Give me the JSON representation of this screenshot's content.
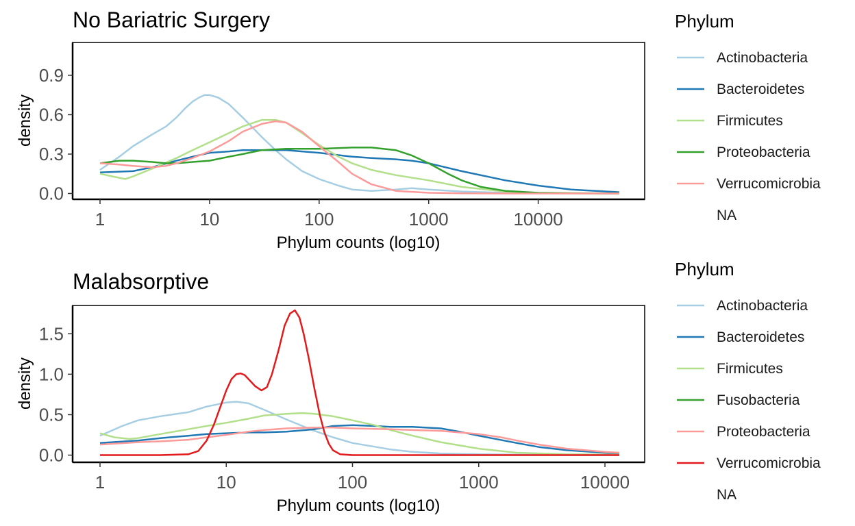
{
  "chart_data": [
    {
      "type": "line",
      "title": "No Bariatric Surgery",
      "xlabel": "Phylum counts (log10)",
      "ylabel": "density",
      "x_scale": "log10",
      "xlim": [
        1,
        55000
      ],
      "ylim": [
        0,
        1.15
      ],
      "x_ticks": [
        1,
        10,
        100,
        1000,
        10000
      ],
      "x_tick_labels": [
        "1",
        "10",
        "100",
        "1000",
        "10000"
      ],
      "y_ticks": [
        0,
        0.3,
        0.6,
        0.9
      ],
      "y_tick_labels": [
        "0.0",
        "0.3",
        "0.6",
        "0.9"
      ],
      "grid": false,
      "legend": {
        "title": "Phylum",
        "position": "right",
        "entries": [
          {
            "label": "Actinobacteria",
            "color": "#a6cee3"
          },
          {
            "label": "Bacteroidetes",
            "color": "#1f78b4"
          },
          {
            "label": "Firmicutes",
            "color": "#b2df8a"
          },
          {
            "label": "Proteobacteria",
            "color": "#33a02c"
          },
          {
            "label": "Verrucomicrobia",
            "color": "#fb9a99"
          },
          {
            "label": "NA",
            "color": ""
          }
        ]
      },
      "series": [
        {
          "name": "Actinobacteria",
          "color": "#a6cee3",
          "x": [
            1,
            1.5,
            2,
            3,
            4,
            5,
            6,
            7,
            8,
            9,
            10,
            12,
            15,
            20,
            30,
            40,
            50,
            70,
            100,
            150,
            200,
            300,
            500,
            700,
            1000,
            2000,
            5000,
            10000,
            55000
          ],
          "y": [
            0.18,
            0.28,
            0.36,
            0.45,
            0.51,
            0.58,
            0.65,
            0.7,
            0.73,
            0.75,
            0.75,
            0.73,
            0.68,
            0.58,
            0.43,
            0.33,
            0.26,
            0.17,
            0.11,
            0.06,
            0.03,
            0.02,
            0.03,
            0.04,
            0.03,
            0.015,
            0.005,
            0.002,
            0.0
          ]
        },
        {
          "name": "Bacteroidetes",
          "color": "#1f78b4",
          "x": [
            1,
            2,
            3,
            5,
            7,
            10,
            15,
            20,
            30,
            50,
            70,
            100,
            200,
            300,
            500,
            700,
            1000,
            2000,
            5000,
            10000,
            20000,
            55000
          ],
          "y": [
            0.16,
            0.17,
            0.2,
            0.25,
            0.28,
            0.31,
            0.32,
            0.33,
            0.33,
            0.33,
            0.32,
            0.31,
            0.28,
            0.27,
            0.26,
            0.25,
            0.23,
            0.17,
            0.1,
            0.06,
            0.03,
            0.01
          ]
        },
        {
          "name": "Firmicutes",
          "color": "#b2df8a",
          "x": [
            1,
            1.3,
            1.7,
            2,
            3,
            5,
            7,
            10,
            15,
            20,
            30,
            40,
            50,
            70,
            100,
            150,
            200,
            300,
            500,
            1000,
            2000,
            5000,
            10000,
            55000
          ],
          "y": [
            0.15,
            0.13,
            0.11,
            0.13,
            0.19,
            0.27,
            0.33,
            0.39,
            0.46,
            0.51,
            0.56,
            0.56,
            0.54,
            0.46,
            0.37,
            0.28,
            0.23,
            0.18,
            0.14,
            0.1,
            0.05,
            0.015,
            0.005,
            0.0
          ]
        },
        {
          "name": "Proteobacteria",
          "color": "#33a02c",
          "x": [
            1,
            1.5,
            2,
            3,
            4,
            5,
            7,
            10,
            15,
            20,
            30,
            50,
            100,
            200,
            300,
            500,
            700,
            1000,
            1500,
            2000,
            3000,
            5000,
            10000,
            20000,
            55000
          ],
          "y": [
            0.23,
            0.25,
            0.25,
            0.24,
            0.23,
            0.23,
            0.24,
            0.25,
            0.28,
            0.3,
            0.33,
            0.34,
            0.34,
            0.35,
            0.35,
            0.33,
            0.29,
            0.23,
            0.15,
            0.1,
            0.05,
            0.02,
            0.005,
            0.001,
            0.0
          ]
        },
        {
          "name": "Verrucomicrobia",
          "color": "#fb9a99",
          "x": [
            1,
            1.5,
            2,
            3,
            4,
            5,
            7,
            10,
            15,
            20,
            30,
            40,
            50,
            70,
            100,
            150,
            200,
            300,
            500,
            1000,
            2000,
            5000,
            55000
          ],
          "y": [
            0.23,
            0.22,
            0.21,
            0.2,
            0.21,
            0.23,
            0.27,
            0.32,
            0.4,
            0.47,
            0.53,
            0.55,
            0.54,
            0.47,
            0.36,
            0.24,
            0.15,
            0.07,
            0.02,
            0.005,
            0.001,
            0.0,
            0.0
          ]
        }
      ]
    },
    {
      "type": "line",
      "title": "Malabsorptive",
      "xlabel": "Phylum counts (log10)",
      "ylabel": "density",
      "x_scale": "log10",
      "xlim": [
        1,
        13000
      ],
      "ylim": [
        0,
        1.85
      ],
      "x_ticks": [
        1,
        10,
        100,
        1000,
        10000
      ],
      "x_tick_labels": [
        "1",
        "10",
        "100",
        "1000",
        "10000"
      ],
      "y_ticks": [
        0,
        0.5,
        1.0,
        1.5
      ],
      "y_tick_labels": [
        "0.0",
        "0.5",
        "1.0",
        "1.5"
      ],
      "grid": false,
      "legend": {
        "title": "Phylum",
        "position": "right",
        "entries": [
          {
            "label": "Actinobacteria",
            "color": "#a6cee3"
          },
          {
            "label": "Bacteroidetes",
            "color": "#1f78b4"
          },
          {
            "label": "Firmicutes",
            "color": "#b2df8a"
          },
          {
            "label": "Fusobacteria",
            "color": "#33a02c"
          },
          {
            "label": "Proteobacteria",
            "color": "#fb9a99"
          },
          {
            "label": "Verrucomicrobia",
            "color": "#e31a1c"
          },
          {
            "label": "NA",
            "color": ""
          }
        ]
      },
      "series": [
        {
          "name": "Actinobacteria",
          "color": "#a6cee3",
          "x": [
            1,
            1.5,
            2,
            3,
            5,
            7,
            10,
            12,
            15,
            20,
            30,
            50,
            70,
            100,
            200,
            300,
            500,
            1000,
            2000,
            5000,
            13000
          ],
          "y": [
            0.24,
            0.36,
            0.43,
            0.48,
            0.53,
            0.6,
            0.65,
            0.66,
            0.64,
            0.56,
            0.44,
            0.3,
            0.22,
            0.15,
            0.07,
            0.04,
            0.02,
            0.01,
            0.005,
            0.001,
            0.0
          ]
        },
        {
          "name": "Bacteroidetes",
          "color": "#1f78b4",
          "x": [
            1,
            2,
            3,
            5,
            7,
            10,
            15,
            20,
            30,
            50,
            70,
            100,
            150,
            200,
            300,
            500,
            700,
            1000,
            2000,
            3000,
            5000,
            10000,
            13000
          ],
          "y": [
            0.15,
            0.18,
            0.21,
            0.24,
            0.26,
            0.27,
            0.28,
            0.28,
            0.29,
            0.32,
            0.36,
            0.37,
            0.36,
            0.35,
            0.35,
            0.33,
            0.29,
            0.24,
            0.15,
            0.1,
            0.06,
            0.03,
            0.02
          ]
        },
        {
          "name": "Firmicutes",
          "color": "#b2df8a",
          "x": [
            1,
            1.3,
            1.7,
            2,
            3,
            5,
            7,
            10,
            15,
            20,
            30,
            40,
            50,
            70,
            100,
            150,
            200,
            300,
            500,
            1000,
            2000,
            5000,
            13000
          ],
          "y": [
            0.27,
            0.22,
            0.2,
            0.21,
            0.26,
            0.32,
            0.36,
            0.4,
            0.45,
            0.49,
            0.51,
            0.52,
            0.51,
            0.48,
            0.43,
            0.37,
            0.31,
            0.24,
            0.16,
            0.08,
            0.03,
            0.01,
            0.005
          ]
        },
        {
          "name": "Proteobacteria",
          "color": "#fb9a99",
          "x": [
            1,
            2,
            3,
            5,
            7,
            10,
            15,
            20,
            30,
            50,
            70,
            100,
            200,
            300,
            500,
            700,
            1000,
            1500,
            2000,
            3000,
            5000,
            10000,
            13000
          ],
          "y": [
            0.13,
            0.16,
            0.17,
            0.19,
            0.22,
            0.25,
            0.29,
            0.31,
            0.33,
            0.34,
            0.34,
            0.33,
            0.32,
            0.31,
            0.3,
            0.28,
            0.26,
            0.22,
            0.18,
            0.13,
            0.08,
            0.04,
            0.03
          ]
        },
        {
          "name": "Verrucomicrobia",
          "color": "#e31a1c",
          "x": [
            1,
            3,
            5,
            6,
            7,
            8,
            9,
            10,
            11,
            12,
            13,
            14,
            15,
            17,
            19,
            21,
            23,
            26,
            29,
            32,
            35,
            38,
            41,
            45,
            50,
            55,
            60,
            65,
            70,
            80,
            100,
            13000
          ],
          "y": [
            0.0,
            0.0,
            0.01,
            0.05,
            0.18,
            0.38,
            0.6,
            0.8,
            0.94,
            1.0,
            1.01,
            0.99,
            0.94,
            0.85,
            0.8,
            0.84,
            1.0,
            1.3,
            1.6,
            1.75,
            1.79,
            1.7,
            1.5,
            1.2,
            0.82,
            0.5,
            0.28,
            0.14,
            0.06,
            0.01,
            0.0,
            0.0
          ]
        }
      ]
    }
  ]
}
